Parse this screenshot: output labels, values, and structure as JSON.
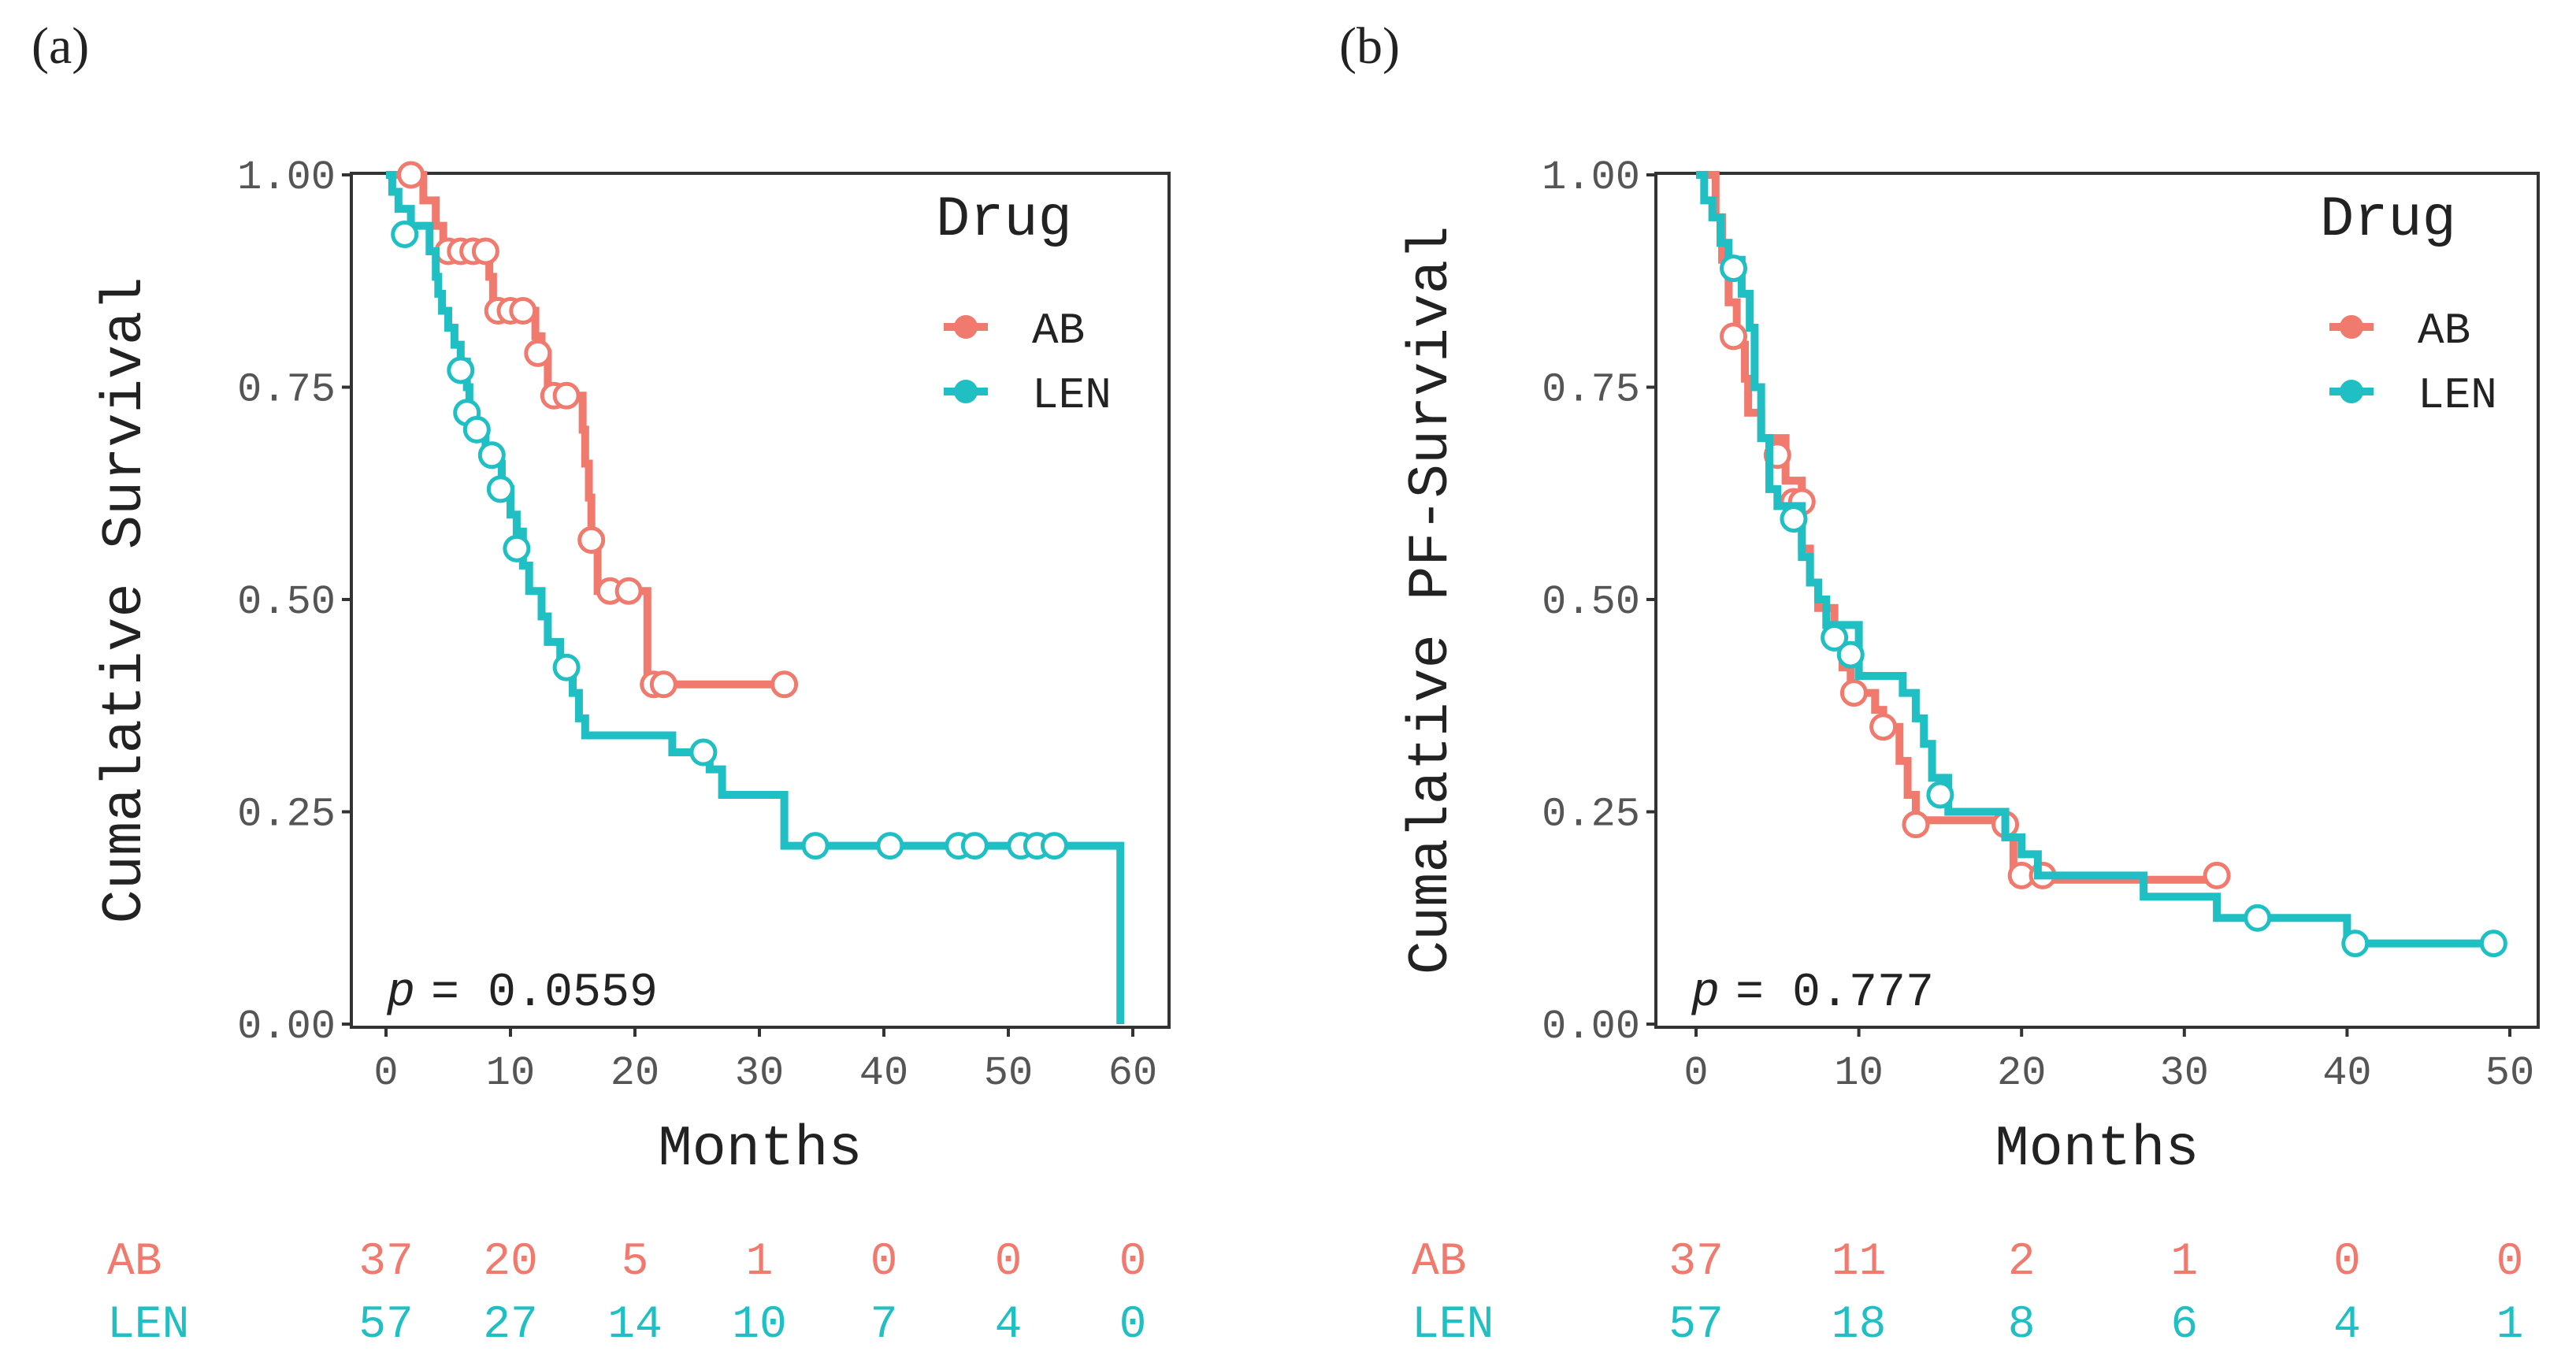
{
  "colors": {
    "AB": "#F07A6E",
    "LEN": "#1FBFC4",
    "axis": "#333333",
    "text": "#222222",
    "tick_text": "#555555"
  },
  "chart_data": [
    {
      "panel_label": "(a)",
      "type": "line",
      "subtype": "kaplan-meier step",
      "title": "",
      "xlabel": "Months",
      "ylabel": "Cumalative Survival",
      "xlim": [
        0,
        60
      ],
      "ylim": [
        0,
        1
      ],
      "xticks": [
        "0",
        "10",
        "20",
        "30",
        "40",
        "50",
        "60"
      ],
      "yticks": [
        "0.00",
        "0.25",
        "0.50",
        "0.75",
        "1.00"
      ],
      "grid": false,
      "legend": {
        "title": "Drug",
        "placement": "top-right",
        "entries": [
          "AB",
          "LEN"
        ]
      },
      "annotation": {
        "p_label": "p",
        "p_text": "= 0.0559"
      },
      "series": [
        {
          "name": "AB",
          "steps": [
            [
              0,
              1
            ],
            [
              3,
              0.97
            ],
            [
              4,
              0.94
            ],
            [
              4.6,
              0.91
            ],
            [
              8.3,
              0.88
            ],
            [
              8.6,
              0.84
            ],
            [
              12,
              0.81
            ],
            [
              12.5,
              0.79
            ],
            [
              13,
              0.74
            ],
            [
              15.8,
              0.7
            ],
            [
              16,
              0.66
            ],
            [
              16.3,
              0.62
            ],
            [
              16.5,
              0.57
            ],
            [
              17,
              0.51
            ],
            [
              21,
              0.4
            ],
            [
              32,
              0.4
            ]
          ],
          "censored": [
            [
              2,
              1
            ],
            [
              5,
              0.91
            ],
            [
              6,
              0.91
            ],
            [
              7,
              0.91
            ],
            [
              8,
              0.91
            ],
            [
              9,
              0.84
            ],
            [
              10,
              0.84
            ],
            [
              11,
              0.84
            ],
            [
              12.2,
              0.79
            ],
            [
              13.5,
              0.74
            ],
            [
              14.5,
              0.74
            ],
            [
              16.5,
              0.57
            ],
            [
              18,
              0.51
            ],
            [
              19.5,
              0.51
            ],
            [
              21.5,
              0.4
            ],
            [
              22.3,
              0.4
            ],
            [
              32,
              0.4
            ]
          ]
        },
        {
          "name": "LEN",
          "steps": [
            [
              0,
              1
            ],
            [
              0.5,
              0.98
            ],
            [
              1,
              0.96
            ],
            [
              2,
              0.94
            ],
            [
              3.5,
              0.91
            ],
            [
              4,
              0.88
            ],
            [
              4.2,
              0.86
            ],
            [
              4.5,
              0.84
            ],
            [
              5,
              0.82
            ],
            [
              5.5,
              0.8
            ],
            [
              6,
              0.78
            ],
            [
              6.5,
              0.75
            ],
            [
              6.7,
              0.72
            ],
            [
              7.2,
              0.7
            ],
            [
              8,
              0.68
            ],
            [
              8.7,
              0.66
            ],
            [
              9.3,
              0.63
            ],
            [
              10,
              0.6
            ],
            [
              10.5,
              0.58
            ],
            [
              11,
              0.54
            ],
            [
              11.5,
              0.51
            ],
            [
              12.5,
              0.48
            ],
            [
              13,
              0.45
            ],
            [
              14,
              0.42
            ],
            [
              15,
              0.39
            ],
            [
              15.5,
              0.36
            ],
            [
              16,
              0.34
            ],
            [
              23,
              0.32
            ],
            [
              26,
              0.3
            ],
            [
              27,
              0.27
            ],
            [
              32,
              0.21
            ],
            [
              59,
              0.21
            ],
            [
              59,
              0
            ]
          ],
          "censored": [
            [
              1.5,
              0.93
            ],
            [
              6,
              0.77
            ],
            [
              6.5,
              0.72
            ],
            [
              7.3,
              0.7
            ],
            [
              8.5,
              0.67
            ],
            [
              9.2,
              0.63
            ],
            [
              10.5,
              0.56
            ],
            [
              14.5,
              0.42
            ],
            [
              25.5,
              0.32
            ],
            [
              34.5,
              0.21
            ],
            [
              40.5,
              0.21
            ],
            [
              46,
              0.21
            ],
            [
              47.3,
              0.21
            ],
            [
              51,
              0.21
            ],
            [
              52.3,
              0.21
            ],
            [
              53.7,
              0.21
            ]
          ]
        }
      ],
      "risk_table": {
        "times": [
          0,
          10,
          20,
          30,
          40,
          50,
          60
        ],
        "rows": [
          {
            "name": "AB",
            "values": [
              "37",
              "20",
              "5",
              "1",
              "0",
              "0",
              "0"
            ]
          },
          {
            "name": "LEN",
            "values": [
              "57",
              "27",
              "14",
              "10",
              "7",
              "4",
              "0"
            ]
          }
        ]
      }
    },
    {
      "panel_label": "(b)",
      "type": "line",
      "subtype": "kaplan-meier step",
      "title": "",
      "xlabel": "Months",
      "ylabel": "Cumalative PF-Survival",
      "xlim": [
        0,
        50
      ],
      "ylim": [
        0,
        1
      ],
      "xticks": [
        "0",
        "10",
        "20",
        "30",
        "40",
        "50"
      ],
      "yticks": [
        "0.00",
        "0.25",
        "0.50",
        "0.75",
        "1.00"
      ],
      "grid": false,
      "legend": {
        "title": "Drug",
        "placement": "top-right",
        "entries": [
          "AB",
          "LEN"
        ]
      },
      "annotation": {
        "p_label": "p",
        "p_text": "= 0.777"
      },
      "series": [
        {
          "name": "AB",
          "steps": [
            [
              0,
              1
            ],
            [
              1.2,
              0.95
            ],
            [
              1.6,
              0.9
            ],
            [
              2,
              0.85
            ],
            [
              2.5,
              0.8
            ],
            [
              3,
              0.76
            ],
            [
              3.2,
              0.72
            ],
            [
              4,
              0.69
            ],
            [
              5.5,
              0.64
            ],
            [
              6.5,
              0.56
            ],
            [
              7,
              0.52
            ],
            [
              7.5,
              0.49
            ],
            [
              8.5,
              0.45
            ],
            [
              9,
              0.42
            ],
            [
              9.5,
              0.39
            ],
            [
              11,
              0.37
            ],
            [
              11.5,
              0.35
            ],
            [
              12.5,
              0.31
            ],
            [
              13,
              0.27
            ],
            [
              13.5,
              0.24
            ],
            [
              19,
              0.22
            ],
            [
              19.5,
              0.17
            ],
            [
              32,
              0.17
            ]
          ],
          "censored": [
            [
              2.3,
              0.81
            ],
            [
              5,
              0.67
            ],
            [
              6,
              0.615
            ],
            [
              6.5,
              0.615
            ],
            [
              9.7,
              0.39
            ],
            [
              11.5,
              0.35
            ],
            [
              13.5,
              0.235
            ],
            [
              19,
              0.235
            ],
            [
              20,
              0.175
            ],
            [
              21.3,
              0.175
            ],
            [
              32,
              0.175
            ]
          ]
        },
        {
          "name": "LEN",
          "steps": [
            [
              0,
              1
            ],
            [
              0.5,
              0.97
            ],
            [
              1,
              0.95
            ],
            [
              1.5,
              0.92
            ],
            [
              2,
              0.9
            ],
            [
              2.8,
              0.86
            ],
            [
              3.3,
              0.82
            ],
            [
              3.6,
              0.75
            ],
            [
              4,
              0.69
            ],
            [
              4.5,
              0.63
            ],
            [
              5,
              0.61
            ],
            [
              6.5,
              0.55
            ],
            [
              7,
              0.52
            ],
            [
              7.5,
              0.5
            ],
            [
              8,
              0.47
            ],
            [
              10,
              0.41
            ],
            [
              12.7,
              0.39
            ],
            [
              13.5,
              0.36
            ],
            [
              14,
              0.33
            ],
            [
              14.5,
              0.29
            ],
            [
              15.5,
              0.25
            ],
            [
              19,
              0.22
            ],
            [
              20,
              0.2
            ],
            [
              21,
              0.175
            ],
            [
              27.5,
              0.15
            ],
            [
              32,
              0.125
            ],
            [
              40,
              0.095
            ],
            [
              49,
              0.095
            ]
          ],
          "censored": [
            [
              2.3,
              0.89
            ],
            [
              6,
              0.595
            ],
            [
              8.5,
              0.455
            ],
            [
              9.5,
              0.435
            ],
            [
              15,
              0.27
            ],
            [
              34.5,
              0.125
            ],
            [
              40.5,
              0.095
            ],
            [
              49,
              0.095
            ]
          ]
        }
      ],
      "risk_table": {
        "times": [
          0,
          10,
          20,
          30,
          40,
          50
        ],
        "rows": [
          {
            "name": "AB",
            "values": [
              "37",
              "11",
              "2",
              "1",
              "0",
              "0"
            ]
          },
          {
            "name": "LEN",
            "values": [
              "57",
              "18",
              "8",
              "6",
              "4",
              "1"
            ]
          }
        ]
      }
    }
  ]
}
